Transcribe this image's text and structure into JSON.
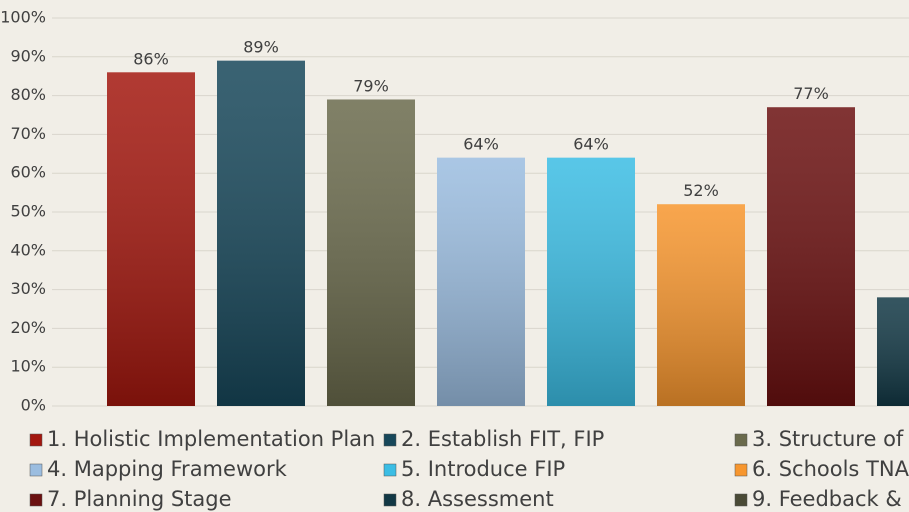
{
  "chart_data": {
    "type": "bar",
    "ylim": [
      0,
      100
    ],
    "yticks": [
      {
        "value": 0,
        "label": "0%"
      },
      {
        "value": 10,
        "label": "10%"
      },
      {
        "value": 20,
        "label": "20%"
      },
      {
        "value": 30,
        "label": "30%"
      },
      {
        "value": 40,
        "label": "40%"
      },
      {
        "value": 50,
        "label": "50%"
      },
      {
        "value": 60,
        "label": "60%"
      },
      {
        "value": 70,
        "label": "70%"
      },
      {
        "value": 80,
        "label": "80%"
      },
      {
        "value": 90,
        "label": "90%"
      },
      {
        "value": 100,
        "label": "100%"
      }
    ],
    "grid": true,
    "series": [
      {
        "name": "1. Holistic Implementation Plan",
        "color": "#a3170e",
        "values": [
          86
        ],
        "value_labels": [
          "86%"
        ]
      },
      {
        "name": "2. Establish FIT, FIP",
        "color": "#17475a",
        "values": [
          89
        ],
        "value_labels": [
          "89%"
        ]
      },
      {
        "name": "3. Structure of",
        "color": "#6a6a4c",
        "values": [
          79
        ],
        "value_labels": [
          "79%"
        ]
      },
      {
        "name": "4. Mapping Framework",
        "color": "#9bbde0",
        "values": [
          64
        ],
        "value_labels": [
          "64%"
        ]
      },
      {
        "name": "5. Introduce FIP",
        "color": "#3bbde4",
        "values": [
          64
        ],
        "value_labels": [
          "64%"
        ]
      },
      {
        "name": "6. Schools TNA",
        "color": "#f7962e",
        "values": [
          52
        ],
        "value_labels": [
          "52%"
        ]
      },
      {
        "name": "7. Planning Stage",
        "color": "#6b1010",
        "values": [
          77
        ],
        "value_labels": [
          "77%"
        ]
      },
      {
        "name": "8. Assessment",
        "color": "#123845",
        "values": [
          28
        ]
      },
      {
        "name": "9. Feedback &",
        "color": "#4a4a36",
        "values": [
          null
        ]
      }
    ]
  }
}
